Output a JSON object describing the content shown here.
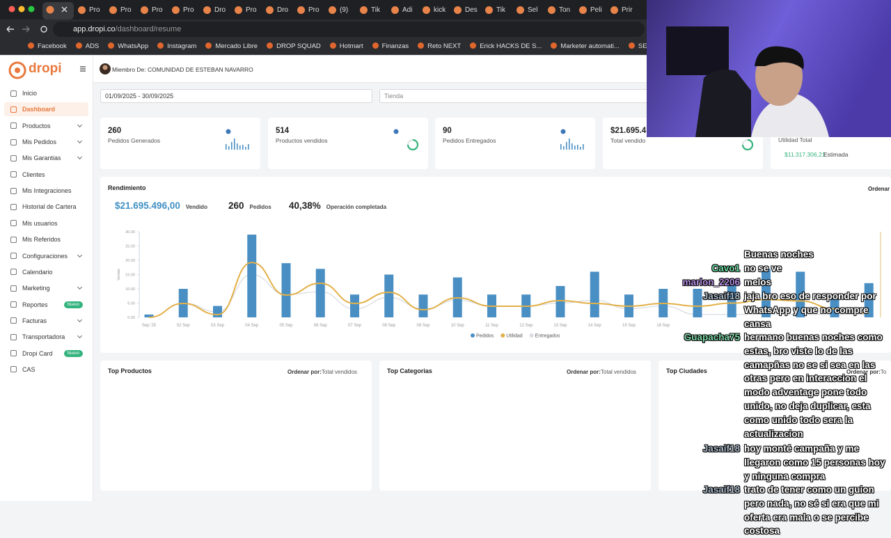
{
  "browser": {
    "tabs": [
      "Pro",
      "Pro",
      "Pro",
      "Pro",
      "Dro",
      "Pro",
      "Dro",
      "Pro",
      "(9)",
      "Tik",
      "Adi",
      "kick",
      "Des",
      "Tik",
      "Sel",
      "Ton",
      "Peli",
      "Prir"
    ],
    "url_host": "app.dropi.co",
    "url_path": "/dashboard/resume",
    "bookmarks": [
      "Facebook",
      "ADS",
      "WhatsApp",
      "Instagram",
      "Mercado Libre",
      "DROP SQUAD",
      "Hotmart",
      "Finanzas",
      "Reto NEXT",
      "Erick HACKS DE S...",
      "Marketer automati...",
      "SEMINARIOS ONLI..."
    ]
  },
  "app": {
    "logo": "dropi",
    "member": "Miembro De: COMUNIDAD DE ESTEBAN NAVARRO",
    "menu": [
      {
        "label": "Inicio"
      },
      {
        "label": "Dashboard",
        "active": true
      },
      {
        "label": "Productos",
        "expandable": true
      },
      {
        "label": "Mis Pedidos",
        "expandable": true
      },
      {
        "label": "Mis Garantias",
        "expandable": true
      },
      {
        "label": "Clientes"
      },
      {
        "label": "Mis Integraciones"
      },
      {
        "label": "Historial de Cartera"
      },
      {
        "label": "Mis usuarios"
      },
      {
        "label": "Mis Referidos"
      },
      {
        "label": "Configuraciones",
        "expandable": true
      },
      {
        "label": "Calendario"
      },
      {
        "label": "Marketing",
        "expandable": true
      },
      {
        "label": "Reportes",
        "badge": "Nuevo"
      },
      {
        "label": "Facturas",
        "expandable": true
      },
      {
        "label": "Transportadora",
        "expandable": true
      },
      {
        "label": "Dropi Card",
        "badge": "Nuevo"
      },
      {
        "label": "CAS"
      }
    ],
    "date_range": "01/09/2025 - 30/09/2025",
    "store_placeholder": "Tienda",
    "cards": [
      {
        "value": "260",
        "label": "Pedidos Generados"
      },
      {
        "value": "514",
        "label": "Productos vendidos"
      },
      {
        "value": "90",
        "label": "Pedidos Entregados"
      },
      {
        "value": "$21.695.4",
        "label": "Total vendido"
      }
    ],
    "utilidad_card": {
      "label": "Utilidad Total",
      "value": "$11.317.306,21",
      "note": "Estimada"
    },
    "performance": {
      "title": "Rendimiento",
      "sort": "Ordenar",
      "stats": [
        {
          "value": "$21.695.496,00",
          "label": "Vendido"
        },
        {
          "value": "260",
          "label": "Pedidos"
        },
        {
          "value": "40,38%",
          "label": "Operación completada"
        }
      ]
    },
    "panels": [
      {
        "title": "Top Productos",
        "sort_label": "Ordenar por:",
        "sort_value": "Total vendidos"
      },
      {
        "title": "Top Categorias",
        "sort_label": "Ordenar por:",
        "sort_value": "Total vendidos"
      },
      {
        "title": "Top Ciudades",
        "sort_label": "Ordenar por:",
        "sort_value": "To"
      }
    ]
  },
  "chart_data": {
    "type": "bar",
    "y_label": "Ventas",
    "categories": [
      "Sep '25",
      "02 Sep",
      "03 Sep",
      "04 Sep",
      "05 Sep",
      "06 Sep",
      "07 Sep",
      "08 Sep",
      "09 Sep",
      "10 Sep",
      "11 Sep",
      "12 Sep",
      "13 Sep",
      "14 Sep",
      "15 Sep",
      "16 Sep",
      null,
      null,
      null,
      null,
      null,
      null
    ],
    "series": [
      {
        "name": "Pedidos",
        "color": "#4a8fc4",
        "values": [
          1,
          10,
          4,
          29,
          19,
          17,
          8,
          15,
          8,
          14,
          8,
          8,
          11,
          16,
          8,
          10,
          10,
          13,
          17,
          16,
          7,
          12
        ]
      },
      {
        "name": "Utilidad",
        "color": "#e2b048",
        "type": "line",
        "axis": "y2",
        "values": [
          0,
          195000,
          39000,
          770000,
          312000,
          478000,
          195000,
          351000,
          107000,
          273000,
          156000,
          156000,
          234000,
          195000,
          156000,
          195000,
          156000,
          200000,
          250000,
          230000,
          120000,
          60000
        ]
      },
      {
        "name": "Entregados",
        "color": "#d9dce1",
        "type": "line",
        "values": [
          0,
          5,
          2,
          15,
          8,
          9,
          3,
          7,
          3,
          6,
          4,
          4,
          5,
          6,
          3,
          4,
          1,
          1,
          1,
          1,
          1,
          1
        ]
      }
    ],
    "ylim": [
      0,
      30
    ],
    "yticks": [
      {
        "value": 0,
        "label": "0.00"
      },
      {
        "value": 5,
        "label": "5.00"
      },
      {
        "value": 10,
        "label": "10.00"
      },
      {
        "value": 15,
        "label": "15.00"
      },
      {
        "value": 20,
        "label": "20.00"
      },
      {
        "value": 25,
        "label": "25.00"
      },
      {
        "value": 30,
        "label": "30.00"
      }
    ],
    "y2lim": [
      0,
      1200000
    ],
    "legend": "bottom"
  },
  "chat": [
    {
      "text": "Buenas noches"
    },
    {
      "name": "Cavo1",
      "color": "#6fe0a6",
      "text": "no se ve"
    },
    {
      "name": "marlon_2206",
      "color": "#b48ee0",
      "text": "melos"
    },
    {
      "name": "Jasaif18",
      "color": "#a9b8c8",
      "text": "jaja bro eso de responder por WhatsApp y que no compre cansa"
    },
    {
      "name": "Guapacha75",
      "color": "#7fd9a8",
      "text": "hermano buenas noches como estas, bro viste lo de las camapñas no se si sea en las otras pero en interaccion el modo adventage pone todo unido, no deja duplicar, esta como unido todo sera la actualizacion"
    },
    {
      "name": "Jasaif18",
      "color": "#a9b8c8",
      "text": "hoy monté campaña y me llegaron como 15 personas hoy y ninguna compra"
    },
    {
      "name": "Jasaif18",
      "color": "#a9b8c8",
      "text": "trato de tener como un guion pero nada, no sé si era que mi oferta era mala o se percibe costosa"
    }
  ]
}
